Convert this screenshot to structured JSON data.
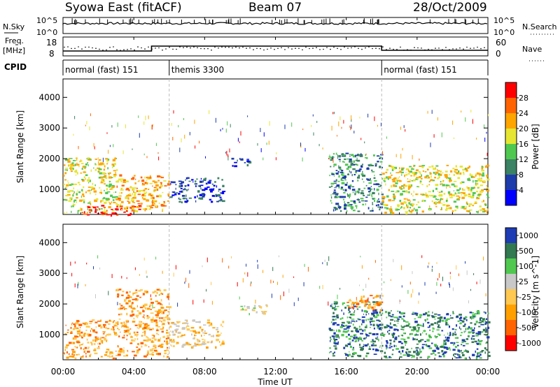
{
  "header": {
    "title": "Syowa East (fitACF)",
    "beam": "Beam 07",
    "date": "28/Oct/2009"
  },
  "noise_panel": {
    "left_label": "N.Sky",
    "right_label": "N.Search",
    "left_ticks": [
      "10^5",
      "10^0"
    ],
    "right_ticks": [
      "10^5",
      "10^0"
    ]
  },
  "freq_panel": {
    "left_label_line1": "Freq.",
    "left_label_line2": "[MHz]",
    "left_ticks": [
      "18",
      "8"
    ],
    "right_label": "Nave",
    "right_ticks": [
      "60",
      "0"
    ]
  },
  "cpid": {
    "label": "CPID",
    "segments": [
      {
        "name": "normal (fast) 151",
        "start_hour": 0,
        "end_hour": 6
      },
      {
        "name": "themis 3300",
        "start_hour": 6,
        "end_hour": 18
      },
      {
        "name": "normal (fast) 151",
        "start_hour": 18,
        "end_hour": 24
      }
    ]
  },
  "chart_data": [
    {
      "type": "heatmap",
      "quantity": "Power",
      "ylabel": "Slant Range [km]",
      "yticks": [
        "1000",
        "2000",
        "3000",
        "4000"
      ],
      "ylim": [
        180,
        4600
      ],
      "colorbar_label": "Power [dB]",
      "colorbar_ticks": [
        "4",
        "8",
        "12",
        "16",
        "20",
        "24",
        "28"
      ],
      "colorscale": [
        "#0000ff",
        "#1e3caa",
        "#3c8264",
        "#50c850",
        "#e6e632",
        "#ffa500",
        "#ff6400",
        "#ff0000"
      ],
      "echo_regions": [
        {
          "t0": 0.0,
          "t1": 3.0,
          "r0": 250,
          "r1": 2050,
          "level": 4
        },
        {
          "t0": 1.0,
          "t1": 4.3,
          "r0": 180,
          "r1": 500,
          "level": 7
        },
        {
          "t0": 3.0,
          "t1": 6.0,
          "r0": 300,
          "r1": 1500,
          "level": 5
        },
        {
          "t0": 6.0,
          "t1": 9.0,
          "r0": 600,
          "r1": 1400,
          "level": 1
        },
        {
          "t0": 9.5,
          "t1": 10.5,
          "r0": 1750,
          "r1": 2050,
          "level": 1
        },
        {
          "t0": 15.0,
          "t1": 18.0,
          "r0": 300,
          "r1": 2200,
          "level": 2
        },
        {
          "t0": 18.0,
          "t1": 24.0,
          "r0": 250,
          "r1": 1800,
          "level": 4
        }
      ]
    },
    {
      "type": "heatmap",
      "quantity": "Velocity",
      "ylabel": "Slant Range [km]",
      "yticks": [
        "1000",
        "2000",
        "3000",
        "4000"
      ],
      "ylim": [
        180,
        4600
      ],
      "colorbar_label": "Velocity [m s^-1]",
      "colorbar_ticks": [
        "1000",
        "500",
        "100",
        "25",
        "-25",
        "-100",
        "-500",
        "-1000"
      ],
      "colorscale": [
        "#1e3cb4",
        "#327850",
        "#50c850",
        "#c8c8c8",
        "#ffc850",
        "#ffa000",
        "#ff6400",
        "#ff0000"
      ],
      "echo_regions": [
        {
          "t0": 0.0,
          "t1": 3.0,
          "r0": 250,
          "r1": 1500,
          "level": 5
        },
        {
          "t0": 3.0,
          "t1": 6.0,
          "r0": 300,
          "r1": 2500,
          "level": 5
        },
        {
          "t0": 6.0,
          "t1": 9.0,
          "r0": 600,
          "r1": 1500,
          "level": 4
        },
        {
          "t0": 10.0,
          "t1": 11.5,
          "r0": 1700,
          "r1": 2000,
          "level": 3
        },
        {
          "t0": 15.0,
          "t1": 18.0,
          "r0": 300,
          "r1": 2100,
          "level": 1
        },
        {
          "t0": 16.0,
          "t1": 18.0,
          "r0": 1800,
          "r1": 2300,
          "level": 5
        },
        {
          "t0": 18.0,
          "t1": 24.0,
          "r0": 250,
          "r1": 1800,
          "level": 1
        }
      ]
    }
  ],
  "xaxis": {
    "ticks": [
      "00:00",
      "04:00",
      "08:00",
      "12:00",
      "16:00",
      "20:00",
      "00:00"
    ],
    "label": "Time UT",
    "range_hours": [
      0,
      24
    ]
  }
}
